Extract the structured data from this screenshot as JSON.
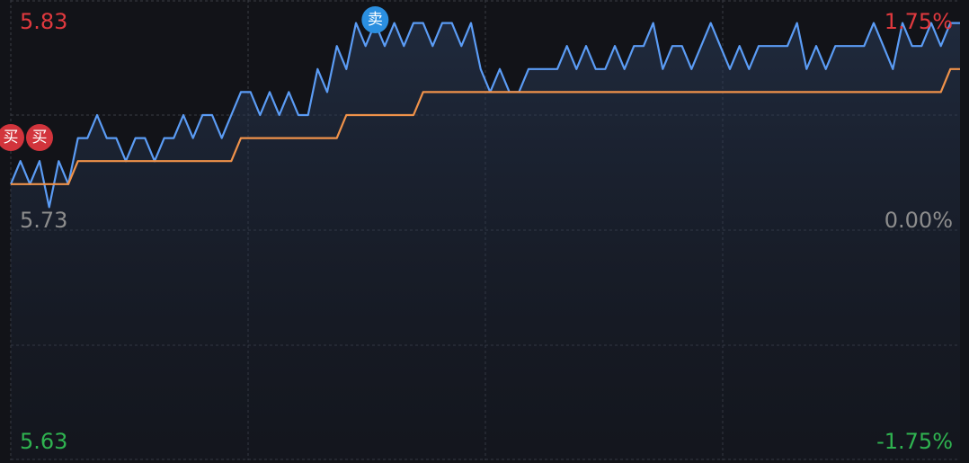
{
  "chart_data": {
    "type": "line",
    "x": [
      0,
      1,
      2,
      3,
      4,
      5,
      6,
      7,
      8,
      9,
      10,
      11,
      12,
      13,
      14,
      15,
      16,
      17,
      18,
      19,
      20,
      21,
      22,
      23,
      24,
      25,
      26,
      27,
      28,
      29,
      30,
      31,
      32,
      33,
      34,
      35,
      36,
      37,
      38,
      39,
      40,
      41,
      42,
      43,
      44,
      45,
      46,
      47,
      48,
      49,
      50,
      51,
      52,
      53,
      54,
      55,
      56,
      57,
      58,
      59,
      60,
      61,
      62,
      63,
      64,
      65,
      66,
      67,
      68,
      69,
      70,
      71,
      72,
      73,
      74,
      75,
      76,
      77,
      78,
      79,
      80,
      81,
      82,
      83,
      84,
      85,
      86,
      87,
      88,
      89,
      90,
      91,
      92,
      93,
      94,
      95,
      96,
      97,
      98,
      99
    ],
    "xlim": [
      0,
      99
    ],
    "series": [
      {
        "color": "#5b9cf5",
        "values": [
          5.75,
          5.76,
          5.75,
          5.76,
          5.74,
          5.76,
          5.75,
          5.77,
          5.77,
          5.78,
          5.77,
          5.77,
          5.76,
          5.77,
          5.77,
          5.76,
          5.77,
          5.77,
          5.78,
          5.77,
          5.78,
          5.78,
          5.77,
          5.78,
          5.79,
          5.79,
          5.78,
          5.79,
          5.78,
          5.79,
          5.78,
          5.78,
          5.8,
          5.79,
          5.81,
          5.8,
          5.82,
          5.81,
          5.82,
          5.81,
          5.82,
          5.81,
          5.82,
          5.82,
          5.81,
          5.82,
          5.82,
          5.81,
          5.82,
          5.8,
          5.79,
          5.8,
          5.79,
          5.79,
          5.8,
          5.8,
          5.8,
          5.8,
          5.81,
          5.8,
          5.81,
          5.8,
          5.8,
          5.81,
          5.8,
          5.81,
          5.81,
          5.82,
          5.8,
          5.81,
          5.81,
          5.8,
          5.81,
          5.82,
          5.81,
          5.8,
          5.81,
          5.8,
          5.81,
          5.81,
          5.81,
          5.81,
          5.82,
          5.8,
          5.81,
          5.8,
          5.81,
          5.81,
          5.81,
          5.81,
          5.82,
          5.81,
          5.8,
          5.82,
          5.81,
          5.81,
          5.82,
          5.81,
          5.82,
          5.82
        ]
      },
      {
        "color": "#f0924a",
        "values": [
          5.75,
          5.75,
          5.75,
          5.75,
          5.75,
          5.75,
          5.75,
          5.76,
          5.76,
          5.76,
          5.76,
          5.76,
          5.76,
          5.76,
          5.76,
          5.76,
          5.76,
          5.76,
          5.76,
          5.76,
          5.76,
          5.76,
          5.76,
          5.76,
          5.77,
          5.77,
          5.77,
          5.77,
          5.77,
          5.77,
          5.77,
          5.77,
          5.77,
          5.77,
          5.77,
          5.78,
          5.78,
          5.78,
          5.78,
          5.78,
          5.78,
          5.78,
          5.78,
          5.79,
          5.79,
          5.79,
          5.79,
          5.79,
          5.79,
          5.79,
          5.79,
          5.79,
          5.79,
          5.79,
          5.79,
          5.79,
          5.79,
          5.79,
          5.79,
          5.79,
          5.79,
          5.79,
          5.79,
          5.79,
          5.79,
          5.79,
          5.79,
          5.79,
          5.79,
          5.79,
          5.79,
          5.79,
          5.79,
          5.79,
          5.79,
          5.79,
          5.79,
          5.79,
          5.79,
          5.79,
          5.79,
          5.79,
          5.79,
          5.79,
          5.79,
          5.79,
          5.79,
          5.79,
          5.79,
          5.79,
          5.79,
          5.79,
          5.79,
          5.79,
          5.79,
          5.79,
          5.79,
          5.79,
          5.8,
          5.8
        ]
      }
    ],
    "ylim": [
      5.63,
      5.83
    ],
    "yticks": [
      5.83,
      5.73,
      5.63
    ],
    "y2lim": [
      -1.75,
      1.75
    ],
    "y2ticks": [
      {
        "value": 1.75,
        "label": "1.75%"
      },
      {
        "value": 0,
        "label": "0.00%"
      },
      {
        "value": -1.75,
        "label": "-1.75%"
      }
    ],
    "grid": true,
    "annotations": [
      {
        "text": "买",
        "x": 0,
        "kind": "buy"
      },
      {
        "text": "买",
        "x": 3,
        "kind": "buy"
      },
      {
        "text": "卖",
        "x": 38,
        "kind": "sell"
      }
    ]
  }
}
